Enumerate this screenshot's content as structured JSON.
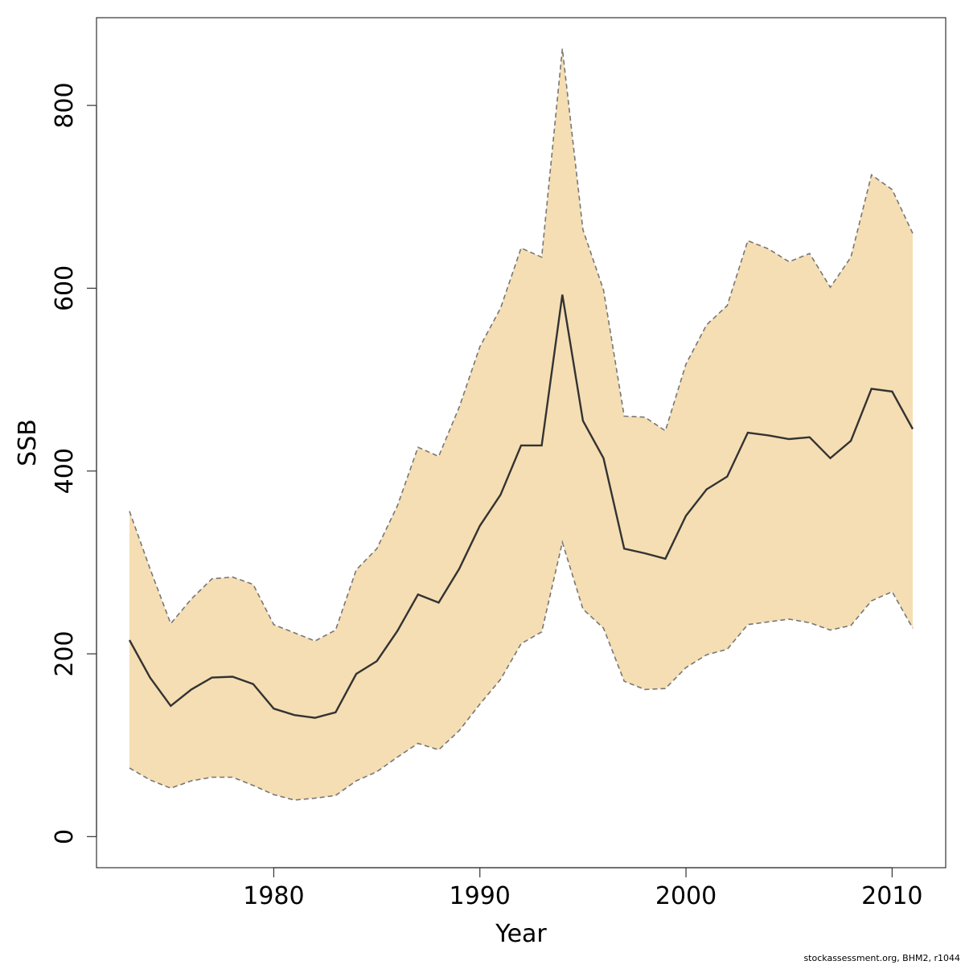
{
  "chart_data": {
    "type": "area",
    "title": "",
    "xlabel": "Year",
    "ylabel": "SSB",
    "xlim": [
      1971.4,
      2012.6
    ],
    "ylim": [
      -34,
      896
    ],
    "x_ticks": [
      1980,
      1990,
      2000,
      2010
    ],
    "y_ticks": [
      0,
      200,
      400,
      600,
      800
    ],
    "grid": false,
    "legend": "none",
    "colors": {
      "band": "#f5deb3",
      "median": "#333333",
      "bounds": "#777777",
      "frame": "#333333"
    },
    "x": [
      1973,
      1974,
      1975,
      1976,
      1977,
      1978,
      1979,
      1980,
      1981,
      1982,
      1983,
      1984,
      1985,
      1986,
      1987,
      1988,
      1989,
      1990,
      1991,
      1992,
      1993,
      1994,
      1995,
      1996,
      1997,
      1998,
      1999,
      2000,
      2001,
      2002,
      2003,
      2004,
      2005,
      2006,
      2007,
      2008,
      2009,
      2010,
      2011
    ],
    "series": [
      {
        "role": "upper",
        "values": [
          356,
          293,
          233,
          260,
          282,
          284,
          276,
          232,
          223,
          214,
          226,
          292,
          315,
          362,
          426,
          416,
          470,
          536,
          578,
          644,
          634,
          862,
          664,
          598,
          460,
          459,
          444,
          517,
          560,
          581,
          652,
          643,
          629,
          638,
          601,
          634,
          724,
          708,
          660
        ]
      },
      {
        "role": "median",
        "values": [
          215,
          174,
          143,
          161,
          174,
          175,
          167,
          140,
          133,
          130,
          136,
          178,
          192,
          225,
          265,
          256,
          293,
          340,
          374,
          428,
          428,
          593,
          455,
          414,
          315,
          310,
          304,
          351,
          380,
          394,
          442,
          439,
          435,
          437,
          414,
          433,
          490,
          487,
          446
        ]
      },
      {
        "role": "lower",
        "values": [
          75,
          62,
          53,
          61,
          65,
          65,
          56,
          46,
          40,
          42,
          45,
          61,
          71,
          87,
          102,
          95,
          116,
          145,
          172,
          211,
          224,
          322,
          249,
          228,
          170,
          161,
          162,
          185,
          199,
          205,
          232,
          235,
          238,
          234,
          226,
          231,
          258,
          268,
          228
        ]
      }
    ]
  },
  "footer": "stockassessment.org, BHM2, r1044"
}
